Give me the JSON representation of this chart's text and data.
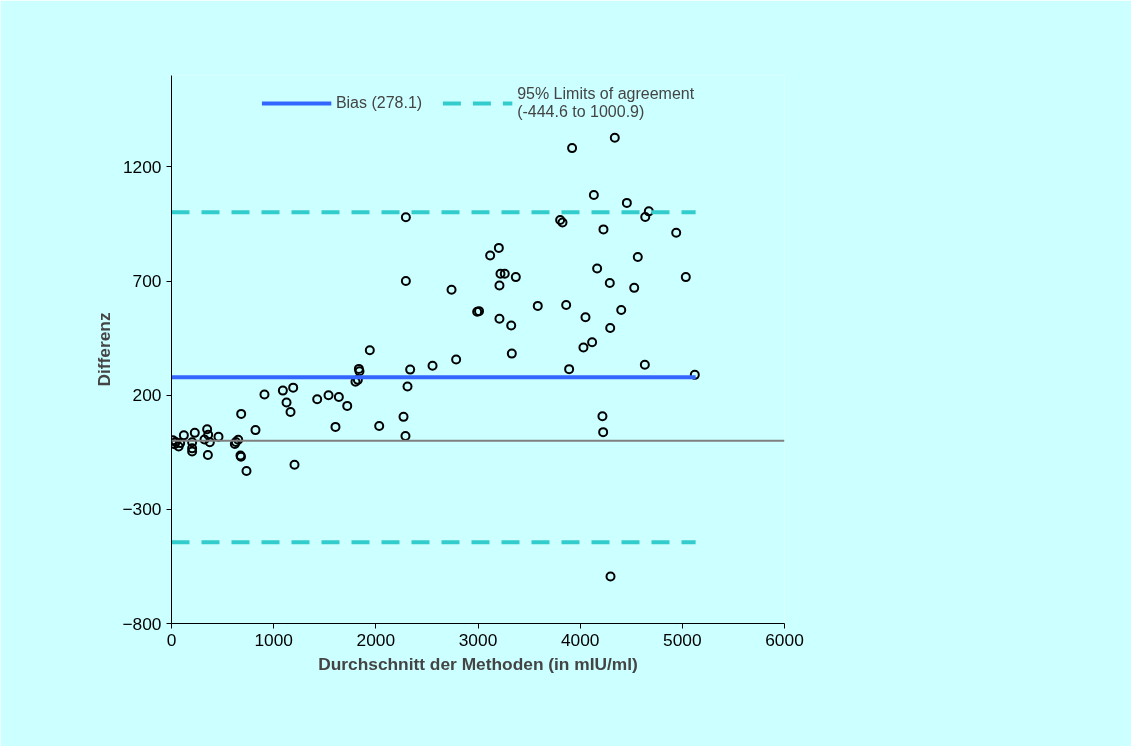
{
  "chart_data": {
    "type": "scatter",
    "xlabel": "Durchschnitt der Methoden (in mIU/ml)",
    "ylabel": "Differenz",
    "xlim": [
      0,
      6000
    ],
    "xticks": [
      0,
      1000,
      2000,
      3000,
      4000,
      5000,
      6000
    ],
    "ylim": [
      -800,
      1600
    ],
    "yticks": [
      -800,
      -300,
      200,
      700,
      1200
    ],
    "grid": false,
    "legend": "top",
    "marker": "circle",
    "series": [
      {
        "color": "#000000",
        "x": [
          2294,
          2294,
          2741,
          2992,
          1941,
          2786,
          2555,
          2336,
          1834,
          1840,
          1824,
          1801,
          2310,
          910,
          1090,
          1191,
          1126,
          1165,
          682,
          1426,
          1537,
          1638,
          1720,
          1605,
          2033,
          2271,
          2290,
          822,
          1204,
          734,
          675,
          680,
          653,
          620,
          630,
          460,
          375,
          349,
          359,
          323,
          356,
          228,
          202,
          202,
          121,
          202,
          13,
          40,
          70,
          85,
          30,
          4339,
          3921,
          4134,
          4457,
          4672,
          4637,
          3804,
          3827,
          4228,
          4940,
          3204,
          3119,
          4564,
          4166,
          3220,
          3262,
          3370,
          5034,
          4290,
          3210,
          4529,
          3010,
          3585,
          3863,
          4402,
          4052,
          3210,
          3325,
          4294,
          4117,
          4032,
          3331,
          4633,
          3892,
          5122,
          4218,
          4225,
          4297
        ],
        "values": [
          979,
          700,
          662,
          565,
          397,
          356,
          329,
          312,
          315,
          305,
          267,
          259,
          238,
          203,
          220,
          233,
          168,
          126,
          118,
          182,
          200,
          192,
          153,
          61,
          65,
          105,
          21,
          47,
          -105,
          -132,
          -64,
          -70,
          5,
          -14,
          -5,
          18,
          -6,
          51,
          27,
          6,
          -62,
          35,
          -33,
          -47,
          24,
          -6,
          3,
          -5,
          -25,
          -10,
          -15,
          1327,
          1282,
          1077,
          1042,
          1005,
          980,
          967,
          956,
          926,
          911,
          845,
          812,
          805,
          755,
          732,
          732,
          717,
          717,
          691,
          680,
          670,
          568,
          591,
          595,
          573,
          541,
          535,
          505,
          494,
          432,
          409,
          382,
          333,
          314,
          289,
          108,
          38,
          -594
        ]
      },
      {
        "type": "line",
        "name": "Bias (278.1)",
        "color": "#3366ff",
        "line_style": "solid",
        "marker": "none",
        "x": [
          0,
          5130
        ],
        "values": [
          278.1,
          278.1
        ]
      },
      {
        "type": "line",
        "name": "95% Limits of agreement\n(-444.6 to 1000.9)",
        "color": "#33cccc",
        "line_style": "dashed",
        "marker": "none",
        "x": [
          0,
          5130
        ],
        "values": [
          1000.9,
          1000.9
        ]
      },
      {
        "type": "line",
        "color": "#33cccc",
        "line_style": "dashed",
        "marker": "none",
        "x": [
          0,
          5130
        ],
        "values": [
          -444.6,
          -444.6
        ]
      }
    ],
    "ref_lines": [
      {
        "axis": "y",
        "value": 0,
        "color": "#808080"
      }
    ]
  }
}
